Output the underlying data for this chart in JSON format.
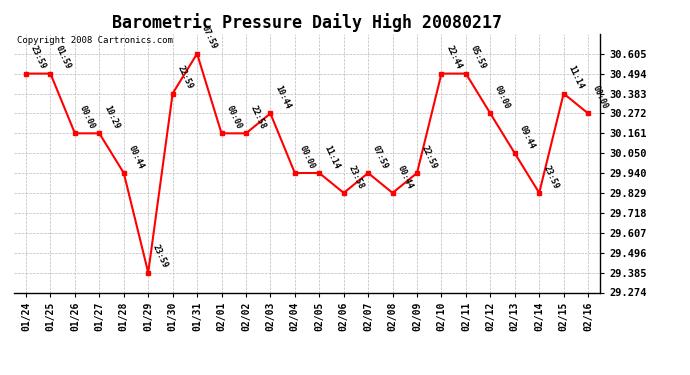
{
  "title": "Barometric Pressure Daily High 20080217",
  "copyright": "Copyright 2008 Cartronics.com",
  "x_labels": [
    "01/24",
    "01/25",
    "01/26",
    "01/27",
    "01/28",
    "01/29",
    "01/30",
    "01/31",
    "02/01",
    "02/02",
    "02/03",
    "02/04",
    "02/05",
    "02/06",
    "02/07",
    "02/08",
    "02/09",
    "02/10",
    "02/11",
    "02/12",
    "02/13",
    "02/14",
    "02/15",
    "02/16"
  ],
  "y_values": [
    30.494,
    30.494,
    30.161,
    30.161,
    29.94,
    29.385,
    30.383,
    30.605,
    30.161,
    30.161,
    30.272,
    29.94,
    29.94,
    29.829,
    29.94,
    29.829,
    29.94,
    30.494,
    30.494,
    30.272,
    30.05,
    29.829,
    30.383,
    30.272
  ],
  "point_labels": [
    "23:59",
    "01:59",
    "00:00",
    "10:29",
    "00:44",
    "23:59",
    "22:59",
    "07:59",
    "00:00",
    "22:58",
    "10:44",
    "00:00",
    "11:14",
    "23:58",
    "07:59",
    "00:44",
    "22:59",
    "22:44",
    "05:59",
    "00:00",
    "09:44",
    "23:59",
    "11:14",
    "00:00"
  ],
  "ylim_min": 29.274,
  "ylim_max": 30.716,
  "yticks": [
    29.274,
    29.385,
    29.496,
    29.607,
    29.718,
    29.829,
    29.94,
    30.05,
    30.161,
    30.272,
    30.383,
    30.494,
    30.605
  ],
  "line_color": "red",
  "marker_color": "red",
  "marker_size": 3,
  "bg_color": "#ffffff",
  "grid_color": "#bbbbbb",
  "label_fontsize": 7.5,
  "title_fontsize": 12
}
